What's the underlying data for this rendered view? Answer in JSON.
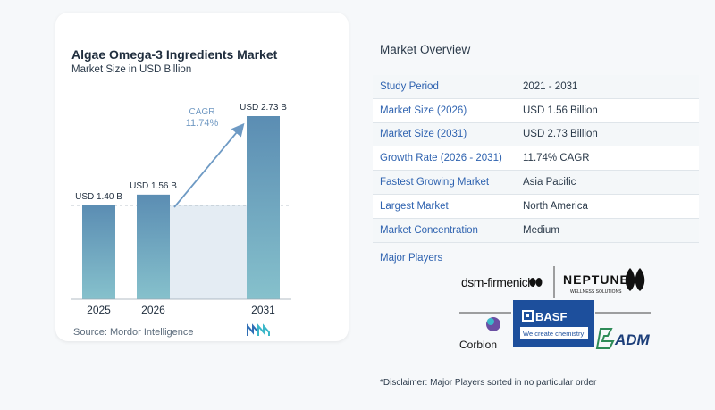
{
  "chart": {
    "title": "Algae Omega-3 Ingredients Market",
    "subtitle": "Market Size in USD Billion",
    "source": "Source:  Mordor Intelligence",
    "cagr_label": "CAGR",
    "cagr_value": "11.74%"
  },
  "chart_data": {
    "type": "bar",
    "categories": [
      "2025",
      "2026",
      "2031"
    ],
    "values": [
      1.4,
      1.56,
      2.73
    ],
    "data_labels": [
      "USD 1.40 B",
      "USD 1.56 B",
      "USD 2.73 B"
    ],
    "title": "Algae Omega-3 Ingredients Market",
    "subtitle": "Market Size in USD Billion",
    "ylim": [
      0,
      2.73
    ],
    "grid": false,
    "colors": {
      "bar_top": "#5b8db3",
      "bar_bottom": "#86c1cc",
      "shade": "#e4ecf3",
      "arrow": "#6e9ac4"
    }
  },
  "overview": {
    "title": "Market Overview",
    "rows": [
      {
        "key": "Study Period",
        "value": "2021 - 2031"
      },
      {
        "key": "Market Size (2026)",
        "value": "USD 1.56 Billion"
      },
      {
        "key": "Market Size (2031)",
        "value": "USD 2.73 Billion"
      },
      {
        "key": "Growth Rate (2026 - 2031)",
        "value": "11.74% CAGR"
      },
      {
        "key": "Fastest Growing Market",
        "value": "Asia Pacific"
      },
      {
        "key": "Largest Market",
        "value": "North America"
      },
      {
        "key": "Market Concentration",
        "value": "Medium"
      }
    ],
    "players_title": "Major Players",
    "players": [
      "dsm-firmenich",
      "NEPTUNE",
      "WELLNESS SOLUTIONS",
      "BASF",
      "We create chemistry",
      "Corbion",
      "ADM"
    ],
    "disclaimer": "*Disclaimer: Major Players sorted in no particular order"
  }
}
